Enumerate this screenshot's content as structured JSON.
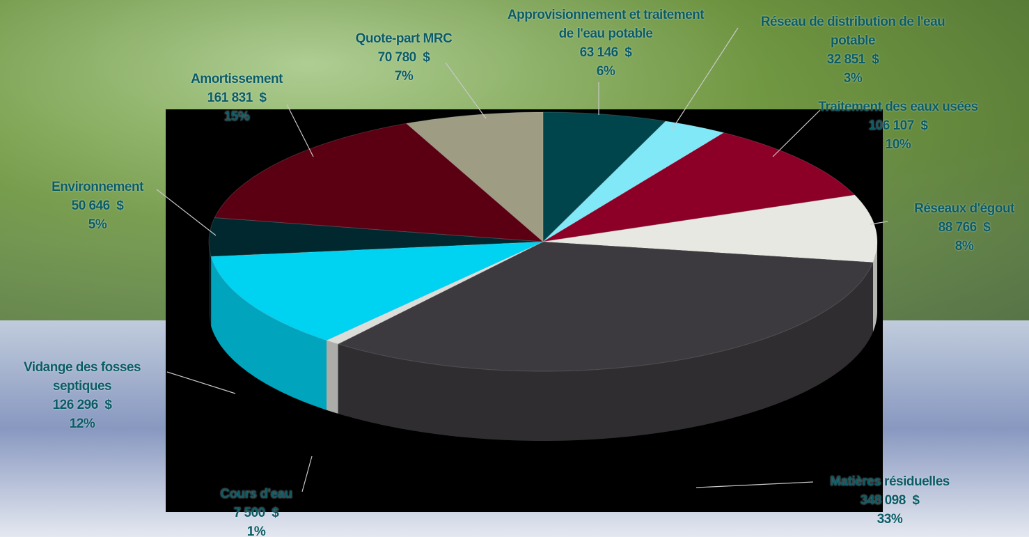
{
  "chart_data": {
    "type": "pie",
    "categories": [
      "Approvisionnement et traitement de l'eau potable",
      "Réseau de distribution de l'eau potable",
      "Traitement des eaux usées",
      "Réseaux d'égout",
      "Matières résiduelles",
      "Cours d'eau",
      "Vidange des fosses septiques",
      "Environnement",
      "Amortissement",
      "Quote-part MRC"
    ],
    "values": [
      63146,
      32851,
      106107,
      88766,
      348098,
      7500,
      126296,
      50646,
      161831,
      70780
    ],
    "value_labels": [
      "63 146  $",
      "32 851  $",
      "106 107  $",
      "88 766  $",
      "348 098  $",
      "7 500  $",
      "126 296  $",
      "50 646  $",
      "161 831  $",
      "70 780  $"
    ],
    "percentage_labels": [
      "6%",
      "3%",
      "10%",
      "8%",
      "33%",
      "1%",
      "12%",
      "5%",
      "15%",
      "7%"
    ],
    "colors": [
      "#00444c",
      "#80e8f6",
      "#8c0028",
      "#e8e8e2",
      "#3c3a3e",
      "#dcdcd8",
      "#00d2f2",
      "#00282e",
      "#5a0012",
      "#9e9c82"
    ]
  }
}
